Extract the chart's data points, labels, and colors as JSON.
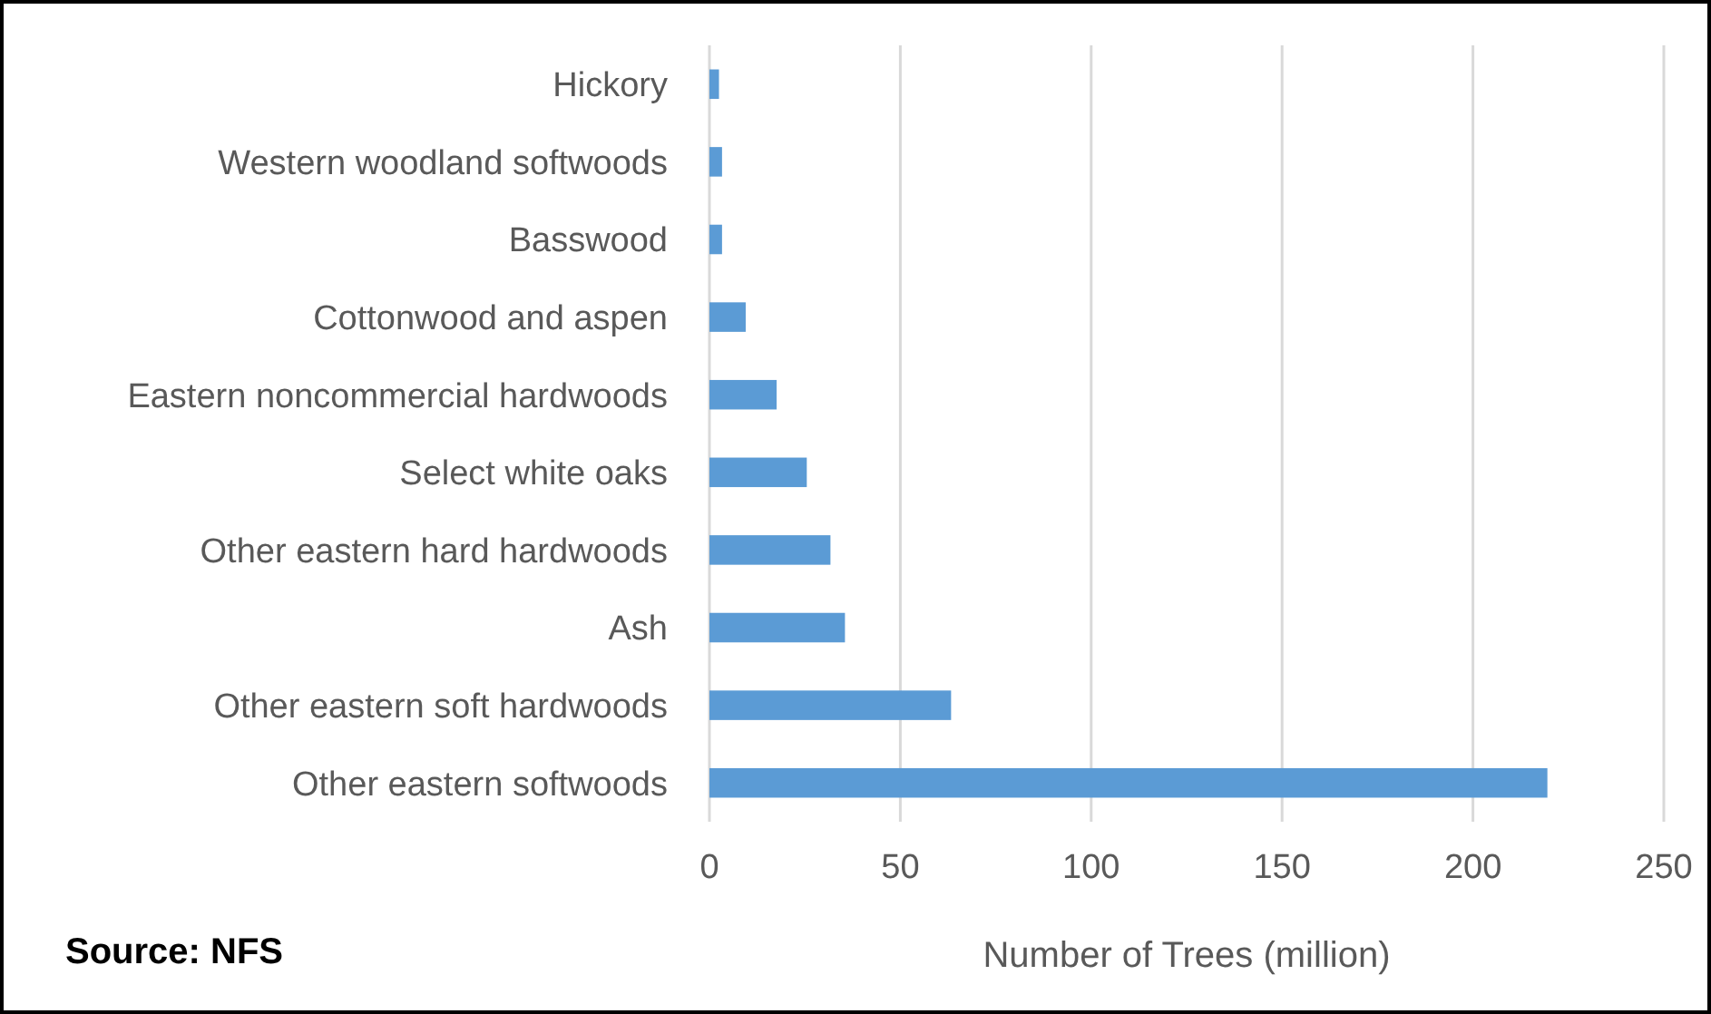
{
  "chart_data": {
    "type": "bar",
    "orientation": "horizontal",
    "categories": [
      "Hickory",
      "Western woodland softwoods",
      "Basswood",
      "Cottonwood and aspen",
      "Eastern noncommercial hardwoods",
      "Select white oaks",
      "Other eastern hard hardwoods",
      "Ash",
      "Other eastern soft hardwoods",
      "Other eastern softwoods"
    ],
    "values": [
      2.5,
      3.3,
      3.3,
      9.5,
      17.6,
      25.5,
      31.7,
      35.5,
      63.3,
      219.5
    ],
    "color": "#5b9bd5",
    "xlim": [
      0,
      250
    ],
    "xticks": [
      0,
      50,
      100,
      150,
      200,
      250
    ],
    "grid": "x",
    "xlabel": "Number of Trees (million)",
    "annotations": [
      "Source: NFS"
    ]
  }
}
